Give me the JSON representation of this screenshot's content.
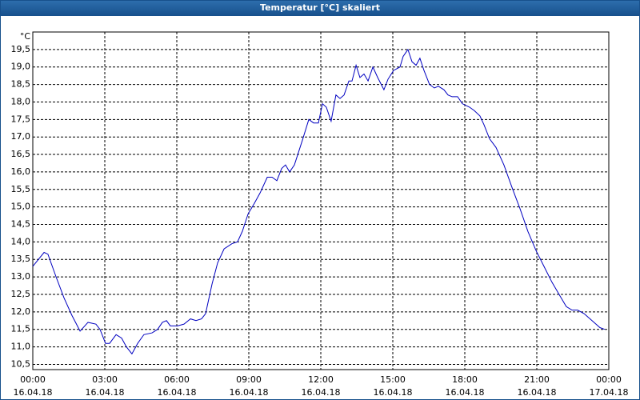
{
  "chart_data": {
    "type": "line",
    "title": "Temperatur [°C] skaliert",
    "y_label": "°C",
    "color": "#0000c0",
    "grid": true,
    "x": [
      0,
      0.47,
      0.63,
      0.97,
      1.3,
      1.63,
      1.97,
      2.3,
      2.63,
      2.8,
      3.03,
      3.2,
      3.47,
      3.7,
      3.9,
      4.13,
      4.37,
      4.63,
      4.97,
      5.2,
      5.4,
      5.57,
      5.73,
      6.03,
      6.3,
      6.57,
      6.8,
      7.03,
      7.2,
      7.47,
      7.7,
      7.97,
      8.3,
      8.53,
      8.73,
      8.97,
      9.23,
      9.47,
      9.77,
      9.97,
      10.17,
      10.37,
      10.53,
      10.7,
      10.9,
      11.23,
      11.5,
      11.7,
      11.9,
      12.07,
      12.23,
      12.43,
      12.63,
      12.8,
      12.97,
      13.17,
      13.3,
      13.47,
      13.63,
      13.8,
      13.97,
      14.17,
      14.37,
      14.63,
      14.8,
      15.03,
      15.3,
      15.43,
      15.63,
      15.8,
      15.97,
      16.13,
      16.3,
      16.53,
      16.73,
      16.9,
      17.13,
      17.3,
      17.47,
      17.7,
      17.9,
      18.2,
      18.4,
      18.63,
      18.8,
      19.03,
      19.3,
      19.63,
      19.97,
      20.3,
      20.63,
      20.97,
      21.3,
      21.63,
      21.97,
      22.23,
      22.47,
      22.7,
      22.97,
      23.3,
      23.63,
      23.83
    ],
    "values": [
      13.3,
      13.7,
      13.65,
      13.0,
      12.4,
      11.9,
      11.45,
      11.7,
      11.65,
      11.5,
      11.1,
      11.1,
      11.35,
      11.25,
      11.0,
      10.8,
      11.1,
      11.35,
      11.4,
      11.5,
      11.7,
      11.75,
      11.6,
      11.6,
      11.65,
      11.8,
      11.75,
      11.8,
      11.95,
      12.8,
      13.4,
      13.8,
      13.95,
      14.0,
      14.3,
      14.8,
      15.1,
      15.4,
      15.85,
      15.85,
      15.75,
      16.1,
      16.2,
      16.0,
      16.2,
      16.9,
      17.5,
      17.4,
      17.4,
      17.95,
      17.85,
      17.45,
      18.2,
      18.1,
      18.2,
      18.6,
      18.6,
      19.05,
      18.7,
      18.8,
      18.6,
      19.0,
      18.7,
      18.35,
      18.65,
      18.9,
      19.0,
      19.3,
      19.5,
      19.15,
      19.05,
      19.25,
      18.9,
      18.5,
      18.4,
      18.45,
      18.35,
      18.2,
      18.15,
      18.15,
      17.95,
      17.85,
      17.75,
      17.6,
      17.35,
      16.95,
      16.7,
      16.2,
      15.55,
      14.95,
      14.3,
      13.75,
      13.3,
      12.85,
      12.45,
      12.15,
      12.05,
      12.05,
      11.95,
      11.75,
      11.55,
      11.5
    ],
    "xlim": [
      0,
      24
    ],
    "xticks": [
      {
        "value": 0,
        "label": "00:00",
        "date": "16.04.18"
      },
      {
        "value": 3,
        "label": "03:00",
        "date": "16.04.18"
      },
      {
        "value": 6,
        "label": "06:00",
        "date": "16.04.18"
      },
      {
        "value": 9,
        "label": "09:00",
        "date": "16.04.18"
      },
      {
        "value": 12,
        "label": "12:00",
        "date": "16.04.18"
      },
      {
        "value": 15,
        "label": "15:00",
        "date": "16.04.18"
      },
      {
        "value": 18,
        "label": "18:00",
        "date": "16.04.18"
      },
      {
        "value": 21,
        "label": "21:00",
        "date": "16.04.18"
      },
      {
        "value": 24,
        "label": "00:00",
        "date": "17.04.18"
      }
    ],
    "ylim": [
      10.35,
      20.0
    ],
    "yticks": [
      {
        "value": 10.5,
        "label": "10,5"
      },
      {
        "value": 11,
        "label": "11,0"
      },
      {
        "value": 11.5,
        "label": "11,5"
      },
      {
        "value": 12,
        "label": "12,0"
      },
      {
        "value": 12.5,
        "label": "12,5"
      },
      {
        "value": 13,
        "label": "13,0"
      },
      {
        "value": 13.5,
        "label": "13,5"
      },
      {
        "value": 14,
        "label": "14,0"
      },
      {
        "value": 14.5,
        "label": "14,5"
      },
      {
        "value": 15,
        "label": "15,0"
      },
      {
        "value": 15.5,
        "label": "15,5"
      },
      {
        "value": 16,
        "label": "16,0"
      },
      {
        "value": 16.5,
        "label": "16,5"
      },
      {
        "value": 17,
        "label": "17,0"
      },
      {
        "value": 17.5,
        "label": "17,5"
      },
      {
        "value": 18,
        "label": "18,0"
      },
      {
        "value": 18.5,
        "label": "18,5"
      },
      {
        "value": 19,
        "label": "19,0"
      },
      {
        "value": 19.5,
        "label": "19,5"
      }
    ]
  }
}
